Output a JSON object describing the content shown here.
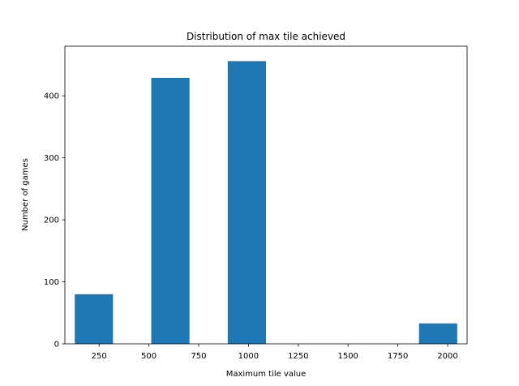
{
  "chart_data": {
    "type": "bar",
    "title": "Distribution of max tile achieved",
    "xlabel": "Maximum tile value",
    "ylabel": "Number of games",
    "xlim": [
      78.4,
      2097.6
    ],
    "ylim": [
      0,
      480
    ],
    "xticks": [
      250,
      500,
      750,
      1000,
      1250,
      1500,
      1750,
      2000
    ],
    "yticks": [
      0,
      100,
      200,
      300,
      400
    ],
    "bars": [
      {
        "x0": 128,
        "x1": 320,
        "value": 80
      },
      {
        "x0": 512,
        "x1": 704,
        "value": 429
      },
      {
        "x0": 896,
        "x1": 1088,
        "value": 456
      },
      {
        "x0": 1856,
        "x1": 2048,
        "value": 33
      }
    ],
    "bar_color": "#1f77b4",
    "grid": false
  }
}
